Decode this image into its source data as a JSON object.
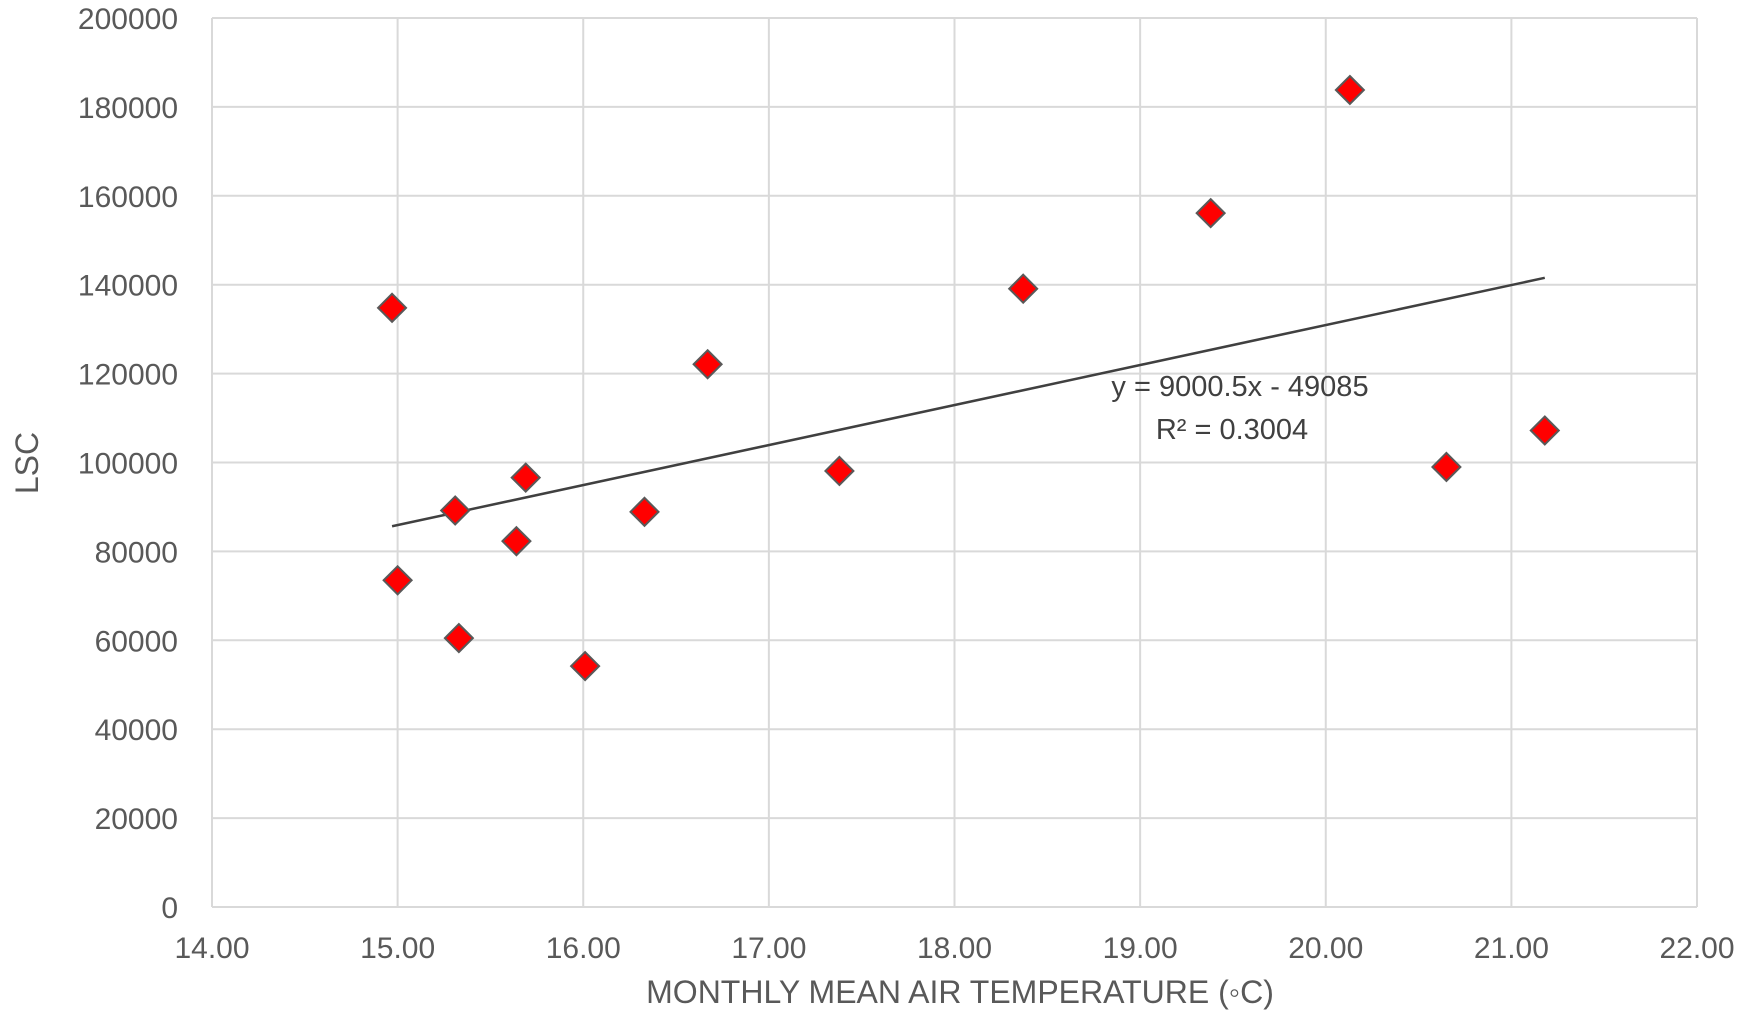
{
  "chart_data": {
    "type": "scatter",
    "title": "",
    "xlabel": "MONTHLY MEAN AIR TEMPERATURE (◦C)",
    "ylabel": "LSC",
    "xlim": [
      14.0,
      22.0
    ],
    "ylim": [
      0,
      200000
    ],
    "x_ticks": [
      "14.00",
      "15.00",
      "16.00",
      "17.00",
      "18.00",
      "19.00",
      "20.00",
      "21.00",
      "22.00"
    ],
    "y_ticks": [
      "0",
      "20000",
      "40000",
      "60000",
      "80000",
      "100000",
      "120000",
      "140000",
      "160000",
      "180000",
      "200000"
    ],
    "grid": true,
    "legend": "none",
    "series": [
      {
        "color": "#ff0000",
        "points": [
          {
            "x": 14.97,
            "y": 134800
          },
          {
            "x": 15.0,
            "y": 73500
          },
          {
            "x": 15.31,
            "y": 89200
          },
          {
            "x": 15.33,
            "y": 60500
          },
          {
            "x": 15.64,
            "y": 82300
          },
          {
            "x": 15.69,
            "y": 96600
          },
          {
            "x": 16.01,
            "y": 54200
          },
          {
            "x": 16.33,
            "y": 88900
          },
          {
            "x": 16.67,
            "y": 122100
          },
          {
            "x": 17.38,
            "y": 98100
          },
          {
            "x": 18.37,
            "y": 139100
          },
          {
            "x": 19.38,
            "y": 156100
          },
          {
            "x": 20.13,
            "y": 183800
          },
          {
            "x": 20.65,
            "y": 99000
          },
          {
            "x": 21.18,
            "y": 107200
          }
        ]
      }
    ],
    "trendline": {
      "type": "linear",
      "slope": 9000.5,
      "intercept": -49085,
      "x_range": [
        14.97,
        21.18
      ],
      "color": "#404040",
      "equation_label": "y = 9000.5x - 49085",
      "r2_label": "R² = 0.3004"
    }
  }
}
